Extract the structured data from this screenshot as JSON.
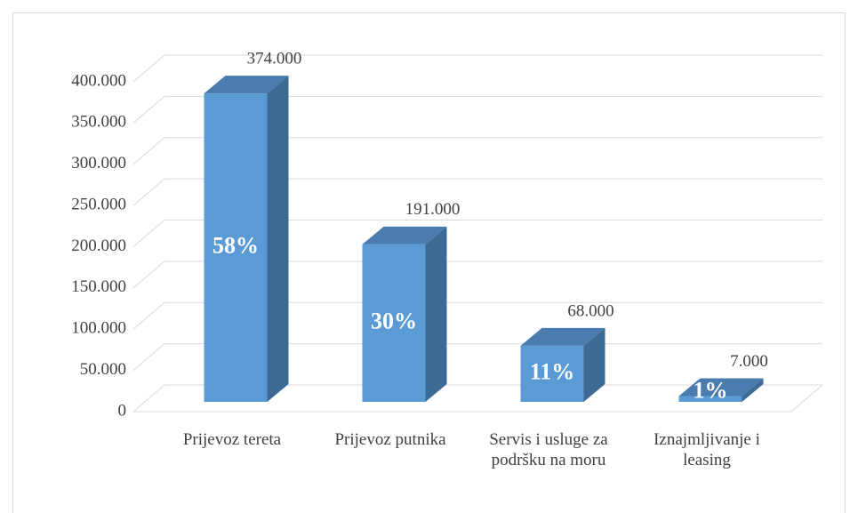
{
  "chart_data": {
    "type": "bar3d",
    "categories": [
      "Prijevoz tereta",
      "Prijevoz putnika",
      "Servis i usluge za podršku na moru",
      "Iznajmljivanje i leasing"
    ],
    "values": [
      374000,
      191000,
      68000,
      7000
    ],
    "value_labels": [
      "374.000",
      "191.000",
      "68.000",
      "7.000"
    ],
    "percent_values": [
      58,
      30,
      11,
      1
    ],
    "percent_labels": [
      "58%",
      "30%",
      "11%",
      "1%"
    ],
    "color": "#5b9bd5",
    "ylim": [
      0,
      400000
    ],
    "yticks": [
      0,
      {
        "value": 50000,
        "label": "50.000"
      },
      {
        "value": 100000,
        "label": "100.000"
      },
      {
        "value": 150000,
        "label": "150.000"
      },
      {
        "value": 200000,
        "label": "200.000"
      },
      {
        "value": 250000,
        "label": "250.000"
      },
      {
        "value": 300000,
        "label": "300.000"
      },
      {
        "value": 350000,
        "label": "350.000"
      },
      {
        "value": 400000,
        "label": "400.000"
      }
    ],
    "grid": true
  }
}
